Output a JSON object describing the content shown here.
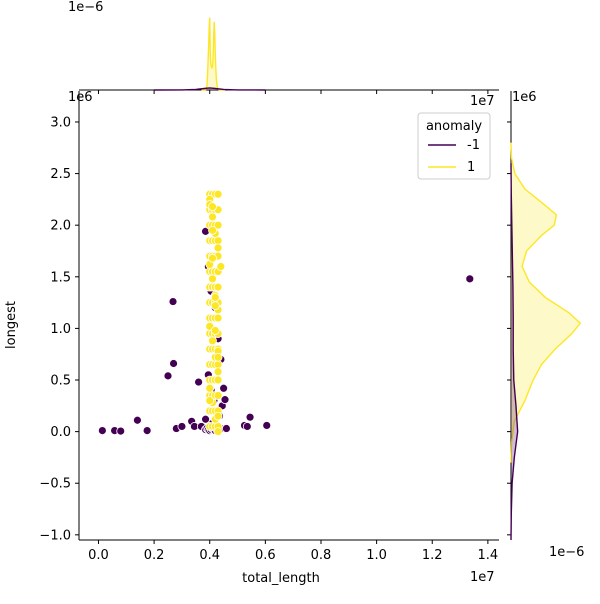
{
  "chart_data": {
    "type": "scatter",
    "title": "",
    "xlabel": "total_length",
    "ylabel": "longest",
    "x_offset_text": "1e7",
    "y_offset_text": "1e6",
    "xlim": [
      -0.07,
      1.44
    ],
    "ylim": [
      -1.05,
      3.3
    ],
    "x_ticks": [
      0.0,
      0.2,
      0.4,
      0.6,
      0.8,
      1.0,
      1.2,
      1.4
    ],
    "x_tick_labels": [
      "0.0",
      "0.2",
      "0.4",
      "0.6",
      "0.8",
      "1.0",
      "1.2",
      "1.4"
    ],
    "y_ticks": [
      -1.0,
      -0.5,
      0.0,
      0.5,
      1.0,
      1.5,
      2.0,
      2.5,
      3.0
    ],
    "y_tick_labels": [
      "−1.0",
      "−0.5",
      "0.0",
      "0.5",
      "1.0",
      "1.5",
      "2.0",
      "2.5",
      "3.0"
    ],
    "grid": false,
    "legend": {
      "title": "anomaly",
      "position": "top-right",
      "entries": [
        {
          "label": "-1",
          "color": "#440154"
        },
        {
          "label": "1",
          "color": "#fde725"
        }
      ]
    },
    "series": [
      {
        "name": "-1",
        "color": "#440154",
        "x": [
          0.014,
          0.058,
          0.08,
          0.14,
          0.175,
          0.25,
          0.268,
          0.27,
          0.28,
          0.3,
          0.335,
          0.345,
          0.36,
          0.37,
          0.385,
          0.39,
          0.395,
          0.4,
          0.405,
          0.41,
          0.415,
          0.42,
          0.425,
          0.43,
          0.44,
          0.445,
          0.45,
          0.455,
          0.46,
          0.525,
          0.535,
          0.545,
          0.605,
          1.335,
          0.385,
          0.395,
          0.405,
          0.42,
          0.43,
          0.44,
          0.395,
          0.405,
          0.415,
          0.425,
          0.435,
          0.385,
          0.41
        ],
        "y": [
          0.01,
          0.01,
          0.005,
          0.11,
          0.01,
          0.54,
          1.26,
          0.66,
          0.03,
          0.05,
          0.1,
          0.05,
          0.48,
          0.05,
          0.02,
          0.03,
          0.02,
          0.01,
          0.02,
          0.03,
          0.02,
          0.01,
          0.02,
          0.02,
          0.03,
          0.25,
          0.42,
          0.31,
          0.03,
          0.06,
          0.05,
          0.14,
          0.06,
          1.48,
          1.94,
          1.6,
          1.36,
          1.2,
          0.9,
          0.7,
          0.55,
          0.4,
          0.3,
          0.2,
          0.15,
          0.12,
          0.08
        ]
      },
      {
        "name": "1",
        "color": "#fde725",
        "x": [
          0.4,
          0.41,
          0.42,
          0.43,
          0.4,
          0.41,
          0.42,
          0.43,
          0.4,
          0.41,
          0.42,
          0.43,
          0.4,
          0.41,
          0.42,
          0.43,
          0.4,
          0.41,
          0.42,
          0.43,
          0.4,
          0.41,
          0.42,
          0.43,
          0.4,
          0.41,
          0.42,
          0.43,
          0.4,
          0.41,
          0.42,
          0.43,
          0.4,
          0.41,
          0.42,
          0.43,
          0.4,
          0.41,
          0.42,
          0.43,
          0.4,
          0.41,
          0.42,
          0.43,
          0.4,
          0.41,
          0.42,
          0.43,
          0.4,
          0.41,
          0.42,
          0.43,
          0.4,
          0.41,
          0.42,
          0.43,
          0.4,
          0.41,
          0.42,
          0.43,
          0.4,
          0.41,
          0.42,
          0.43,
          0.4,
          0.41,
          0.42,
          0.43,
          0.4,
          0.41,
          0.42,
          0.43,
          0.4,
          0.41,
          0.42,
          0.43,
          0.4,
          0.41,
          0.42,
          0.43,
          0.4,
          0.41,
          0.42,
          0.43,
          0.4,
          0.41,
          0.42,
          0.43,
          0.41,
          0.42,
          0.43,
          0.44
        ],
        "y": [
          2.3,
          2.3,
          2.3,
          2.3,
          2.15,
          2.15,
          2.15,
          2.15,
          2.0,
          2.0,
          2.0,
          2.0,
          1.85,
          1.85,
          1.85,
          1.85,
          1.7,
          1.7,
          1.7,
          1.7,
          1.55,
          1.55,
          1.55,
          1.55,
          1.4,
          1.4,
          1.4,
          1.4,
          1.25,
          1.25,
          1.25,
          1.25,
          1.1,
          1.1,
          1.1,
          1.1,
          0.95,
          0.95,
          0.95,
          0.95,
          0.8,
          0.8,
          0.8,
          0.8,
          0.65,
          0.65,
          0.65,
          0.65,
          0.5,
          0.5,
          0.5,
          0.5,
          0.35,
          0.35,
          0.35,
          0.35,
          0.2,
          0.2,
          0.2,
          0.2,
          0.05,
          0.05,
          0.05,
          0.05,
          2.25,
          2.08,
          1.92,
          1.78,
          1.62,
          1.48,
          1.32,
          1.18,
          1.02,
          0.88,
          0.72,
          0.58,
          0.42,
          0.28,
          0.12,
          0.0,
          2.2,
          1.68,
          1.22,
          0.78,
          0.3,
          1.95,
          0.98,
          0.15,
          2.18,
          1.3,
          0.72,
          1.6
        ]
      }
    ],
    "marginal_x": {
      "offset_text": "1e−6",
      "series": [
        {
          "name": "1",
          "color": "#fde725",
          "x": [
            0.37,
            0.385,
            0.39,
            0.393,
            0.396,
            0.398,
            0.4,
            0.402,
            0.404,
            0.406,
            0.408,
            0.41,
            0.412,
            0.414,
            0.416,
            0.418,
            0.42,
            0.422,
            0.424,
            0.426,
            0.428,
            0.43,
            0.432,
            0.435,
            0.44,
            0.455
          ],
          "density": [
            0,
            0,
            0.8,
            4,
            8.5,
            12,
            14,
            7,
            5,
            4.5,
            4.3,
            4.5,
            6,
            10,
            13.2,
            11,
            7,
            4,
            2,
            1,
            0.5,
            0.2,
            0.1,
            0,
            0,
            0
          ]
        },
        {
          "name": "-1",
          "color": "#440154",
          "x": [
            0.2,
            0.3,
            0.35,
            0.38,
            0.4,
            0.42,
            0.45,
            0.5,
            0.6
          ],
          "density": [
            0,
            0.02,
            0.1,
            0.3,
            0.4,
            0.3,
            0.1,
            0.02,
            0
          ]
        }
      ]
    },
    "marginal_y": {
      "offset_text": "1e−6",
      "series": [
        {
          "name": "1",
          "color": "#fde725",
          "y": [
            -0.3,
            -0.1,
            0.1,
            0.3,
            0.5,
            0.65,
            0.8,
            0.95,
            1.05,
            1.15,
            1.3,
            1.45,
            1.6,
            1.75,
            1.9,
            2.0,
            2.1,
            2.2,
            2.35,
            2.5,
            2.65,
            2.8
          ],
          "density": [
            0,
            0.01,
            0.06,
            0.25,
            0.4,
            0.55,
            0.8,
            1.1,
            1.25,
            1.05,
            0.62,
            0.33,
            0.2,
            0.28,
            0.55,
            0.78,
            0.82,
            0.6,
            0.25,
            0.07,
            0.01,
            0
          ]
        },
        {
          "name": "-1",
          "color": "#440154",
          "y": [
            -1.05,
            -0.8,
            -0.5,
            -0.25,
            0.0,
            0.25,
            0.5,
            0.8,
            1.1,
            1.4,
            1.7,
            2.0,
            2.3,
            2.6
          ],
          "density": [
            0,
            0.005,
            0.02,
            0.06,
            0.12,
            0.09,
            0.05,
            0.04,
            0.04,
            0.035,
            0.025,
            0.015,
            0.005,
            0
          ]
        }
      ]
    }
  }
}
